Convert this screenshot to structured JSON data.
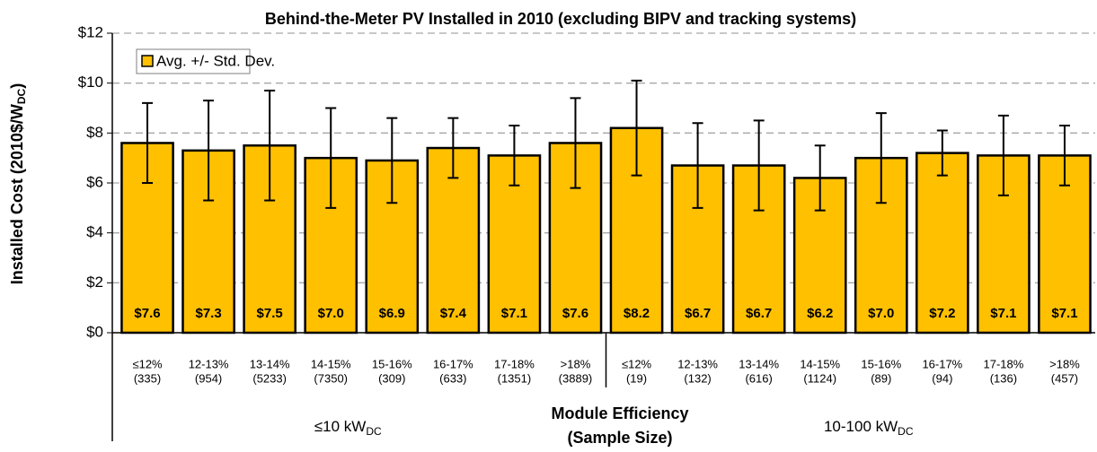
{
  "chart_data": {
    "type": "bar",
    "title": "Behind-the-Meter  PV Installed in 2010  (excluding BIPV and tracking systems)",
    "y_label": [
      "Installed Cost (2010$/W",
      "DC",
      ")"
    ],
    "x_label": [
      "Module Efficiency",
      "(Sample Size)"
    ],
    "categories": [
      "≤12%",
      "12-13%",
      "13-14%",
      "14-15%",
      "15-16%",
      "16-17%",
      "17-18%",
      ">18%",
      "≤12%",
      "12-13%",
      "13-14%",
      "14-15%",
      "15-16%",
      "16-17%",
      "17-18%",
      ">18%"
    ],
    "sample_sizes": [
      "(335)",
      "(954)",
      "(5233)",
      "(7350)",
      "(309)",
      "(633)",
      "(1351)",
      "(3889)",
      "(19)",
      "(132)",
      "(616)",
      "(1124)",
      "(89)",
      "(94)",
      "(136)",
      "(457)"
    ],
    "groups": [
      {
        "label": "≤10 kW",
        "sub": "DC"
      },
      {
        "label": "10-100 kW",
        "sub": "DC"
      }
    ],
    "series": [
      {
        "name": "Avg. +/- Std. Dev.",
        "color": "#ffc000",
        "values": [
          7.6,
          7.3,
          7.5,
          7.0,
          6.9,
          7.4,
          7.1,
          7.6,
          8.2,
          6.7,
          6.7,
          6.2,
          7.0,
          7.2,
          7.1,
          7.1
        ],
        "value_labels": [
          "$7.6",
          "$7.3",
          "$7.5",
          "$7.0",
          "$6.9",
          "$7.4",
          "$7.1",
          "$7.6",
          "$8.2",
          "$6.7",
          "$6.7",
          "$6.2",
          "$7.0",
          "$7.2",
          "$7.1",
          "$7.1"
        ],
        "errors": [
          1.6,
          2.0,
          2.2,
          2.0,
          1.7,
          1.2,
          1.2,
          1.8,
          1.9,
          1.7,
          1.8,
          1.3,
          1.8,
          0.9,
          1.6,
          1.2
        ]
      }
    ],
    "ylim": [
      0,
      12
    ],
    "yticks": [
      {
        "value": 0,
        "label": "$0"
      },
      {
        "value": 2,
        "label": "$2"
      },
      {
        "value": 4,
        "label": "$4"
      },
      {
        "value": 6,
        "label": "$6"
      },
      {
        "value": 8,
        "label": "$8"
      },
      {
        "value": 10,
        "label": "$10"
      },
      {
        "value": 12,
        "label": "$12"
      }
    ],
    "grid": true,
    "legend": "upper left"
  }
}
